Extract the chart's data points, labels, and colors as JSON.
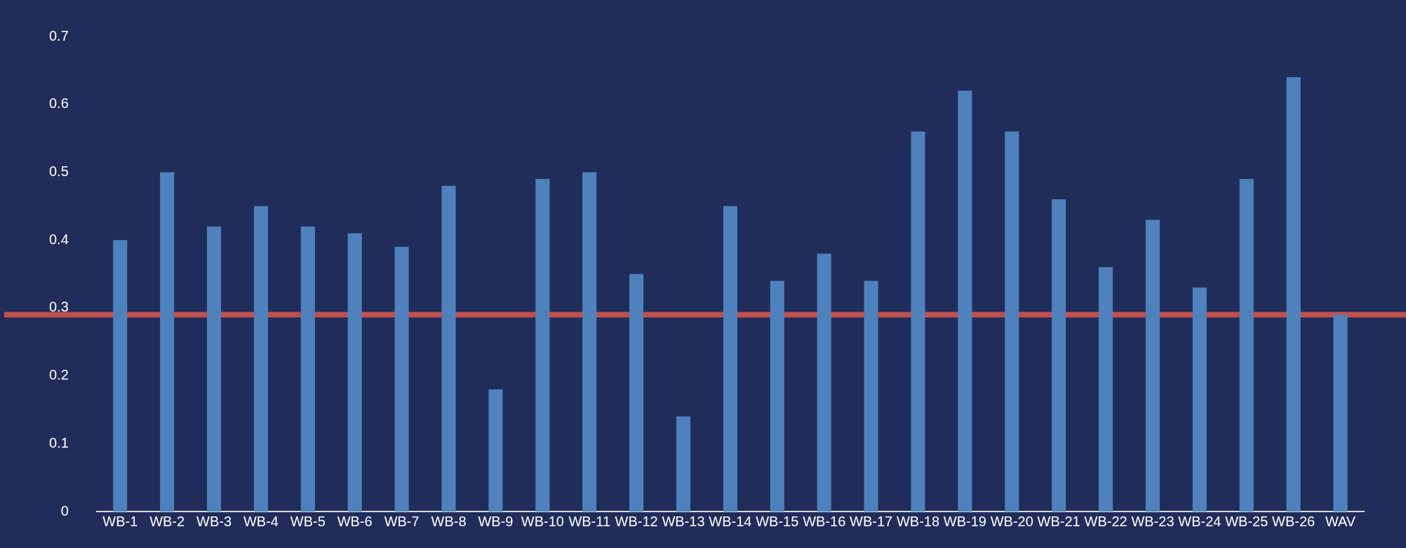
{
  "chart_data": {
    "type": "bar",
    "categories": [
      "WB-1",
      "WB-2",
      "WB-3",
      "WB-4",
      "WB-5",
      "WB-6",
      "WB-7",
      "WB-8",
      "WB-9",
      "WB-10",
      "WB-11",
      "WB-12",
      "WB-13",
      "WB-14",
      "WB-15",
      "WB-16",
      "WB-17",
      "WB-18",
      "WB-19",
      "WB-20",
      "WB-21",
      "WB-22",
      "WB-23",
      "WB-24",
      "WB-25",
      "WB-26",
      "WAV"
    ],
    "values": [
      0.4,
      0.5,
      0.42,
      0.45,
      0.42,
      0.41,
      0.39,
      0.48,
      0.18,
      0.49,
      0.5,
      0.35,
      0.14,
      0.45,
      0.34,
      0.38,
      0.34,
      0.56,
      0.62,
      0.56,
      0.46,
      0.36,
      0.43,
      0.33,
      0.49,
      0.64,
      0.29
    ],
    "color": "#4f81bd",
    "ylim": [
      0,
      0.7
    ],
    "yticks": [
      0,
      0.1,
      0.2,
      0.3,
      0.4,
      0.5,
      0.6,
      0.7
    ],
    "ref_lines": [
      {
        "axis": "y",
        "value": 0.29,
        "label": null,
        "color": "#c0504d"
      }
    ],
    "grid": false,
    "legend": false
  }
}
